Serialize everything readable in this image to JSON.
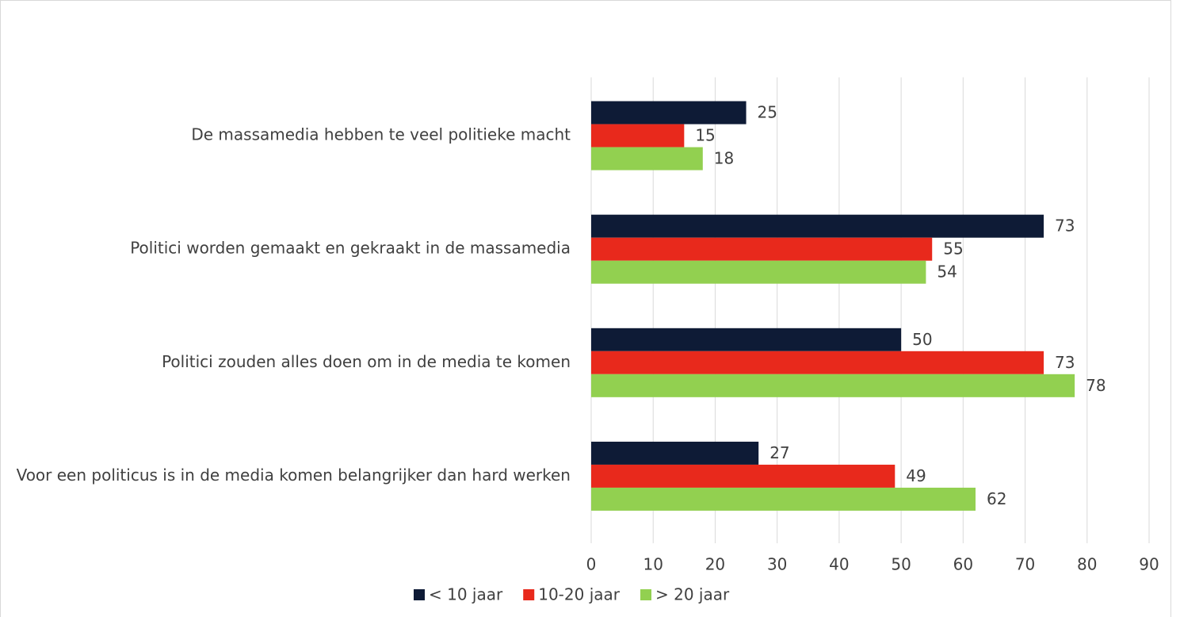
{
  "chart_data": {
    "type": "barh",
    "categories": [
      "De massamedia hebben te veel politieke macht",
      "Politici worden gemaakt en gekraakt in de massamedia",
      "Politici zouden alles doen om in de media te komen",
      "Voor een politicus is in de media komen belangrijker dan hard werken"
    ],
    "series": [
      {
        "name": "< 10 jaar",
        "color": "#0e1b36",
        "values": [
          25,
          73,
          50,
          27
        ]
      },
      {
        "name": "10-20 jaar",
        "color": "#e8291c",
        "values": [
          15,
          55,
          73,
          49
        ]
      },
      {
        "name": "> 20 jaar",
        "color": "#92d050",
        "values": [
          18,
          54,
          78,
          62
        ]
      }
    ],
    "xlim": [
      0,
      90
    ],
    "xticks": [
      0,
      10,
      20,
      30,
      40,
      50,
      60,
      70,
      80,
      90
    ],
    "grid": true,
    "legend": "bottom"
  }
}
